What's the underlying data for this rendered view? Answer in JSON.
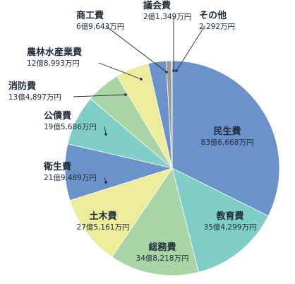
{
  "chart_data": {
    "type": "pie",
    "title": "",
    "unit": "万円",
    "slices": [
      {
        "name": "民生費",
        "value_label": "83億6,668万円",
        "value": 836668,
        "color": "#6b93c9"
      },
      {
        "name": "教育費",
        "value_label": "35億4,299万円",
        "value": 354299,
        "color": "#7fcfc8"
      },
      {
        "name": "総務費",
        "value_label": "34億8,218万円",
        "value": 348218,
        "color": "#a9d5a6"
      },
      {
        "name": "土木費",
        "value_label": "27億5,161万円",
        "value": 275161,
        "color": "#ecec9a"
      },
      {
        "name": "衛生費",
        "value_label": "21億9,489万円",
        "value": 219489,
        "color": "#6b93c9"
      },
      {
        "name": "公債費",
        "value_label": "19億5,686万円",
        "value": 195686,
        "color": "#7fcfc8"
      },
      {
        "name": "消防費",
        "value_label": "13億4,897万円",
        "value": 134897,
        "color": "#a9d5a6"
      },
      {
        "name": "農林水産業費",
        "value_label": "12億8,993万円",
        "value": 128993,
        "color": "#ecec9a"
      },
      {
        "name": "商工費",
        "value_label": "6億9,643万円",
        "value": 69643,
        "color": "#6b93c9"
      },
      {
        "name": "議会費",
        "value_label": "2億1,349万円",
        "value": 21349,
        "color": "#9a9a9a"
      },
      {
        "name": "その他",
        "value_label": "2,292万円",
        "value": 2292,
        "color": "#c9c9c9"
      }
    ]
  }
}
